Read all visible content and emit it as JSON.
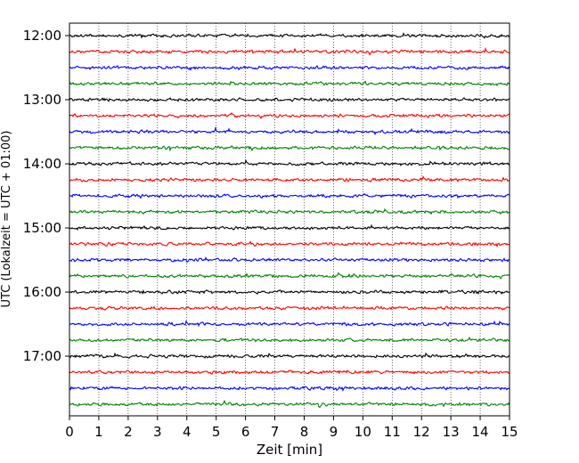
{
  "chart_data": {
    "type": "line",
    "title": "",
    "xlabel": "Zeit  [min]",
    "ylabel": "UTC (Lokalzeit = UTC + 01:00)",
    "xlim": [
      0,
      15
    ],
    "x_ticks": [
      "0",
      "1",
      "2",
      "3",
      "4",
      "5",
      "6",
      "7",
      "8",
      "9",
      "10",
      "11",
      "12",
      "13",
      "14",
      "15"
    ],
    "y_ticks": [
      {
        "value": 0,
        "label": "12:00"
      },
      {
        "value": 4,
        "label": "13:00"
      },
      {
        "value": 8,
        "label": "14:00"
      },
      {
        "value": 12,
        "label": "15:00"
      },
      {
        "value": 16,
        "label": "16:00"
      },
      {
        "value": 20,
        "label": "17:00"
      }
    ],
    "grid": "vertical-dotted",
    "trace_count": 24,
    "trace_interval_minutes": 15,
    "start_time": "12:00",
    "trace_colors": [
      "#000000",
      "#ff0000",
      "#0000ff",
      "#008000"
    ],
    "legend": "none"
  }
}
